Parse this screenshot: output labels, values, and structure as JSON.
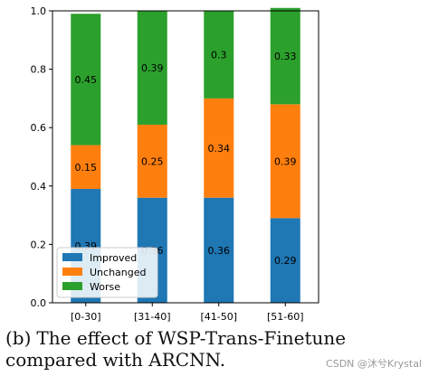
{
  "caption": {
    "prefix": "(b)",
    "text": "The effect of WSP-Trans-Finetune compared with ARCNN."
  },
  "watermark": "CSDN @沐兮Krystal",
  "colors": {
    "Improved": "#1f77b4",
    "Unchanged": "#ff7f0e",
    "Worse": "#2ca02c"
  },
  "chart_data": {
    "type": "bar",
    "stacked": true,
    "categories": [
      "[0-30]",
      "[31-40]",
      "[41-50]",
      "[51-60]"
    ],
    "series": [
      {
        "name": "Improved",
        "values": [
          0.39,
          0.36,
          0.36,
          0.29
        ],
        "labels": [
          "0.39",
          "0.36",
          "0.36",
          "0.29"
        ]
      },
      {
        "name": "Unchanged",
        "values": [
          0.15,
          0.25,
          0.34,
          0.39
        ],
        "labels": [
          "0.15",
          "0.25",
          "0.34",
          "0.39"
        ]
      },
      {
        "name": "Worse",
        "values": [
          0.45,
          0.39,
          0.3,
          0.33
        ],
        "labels": [
          "0.45",
          "0.39",
          "0.3",
          "0.33"
        ]
      }
    ],
    "ylim": [
      0,
      1
    ],
    "yticks": [
      "0.0",
      "0.2",
      "0.4",
      "0.6",
      "0.8",
      "1.0"
    ],
    "grid": false,
    "legend_position": "lower-left",
    "xlabel": "",
    "ylabel": "",
    "title": ""
  }
}
